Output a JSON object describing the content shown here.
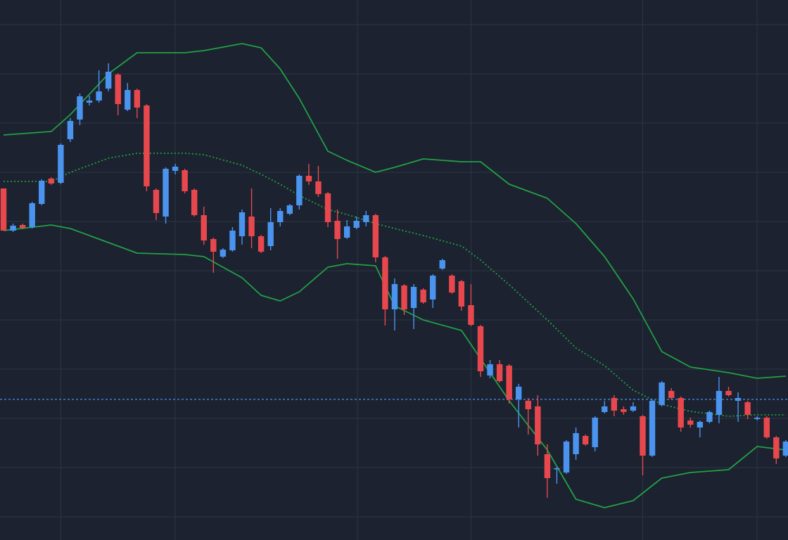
{
  "chart_data": {
    "type": "candlestick",
    "grid": true,
    "up_color": "#4a94ef",
    "down_color": "#e8484d",
    "xlim": [
      -0.37,
      82.23
    ],
    "xticks": [
      6,
      18,
      37.1,
      49,
      67,
      79
    ],
    "ylim": [
      0,
      768
    ],
    "yticks": [
      733,
      663,
      593,
      523,
      453,
      383,
      313,
      243,
      173,
      103,
      33
    ],
    "x": [
      0,
      1,
      2,
      3,
      4,
      5,
      6,
      7,
      8,
      9,
      10,
      11,
      12,
      13,
      14,
      15,
      16,
      17,
      18,
      19,
      20,
      21,
      22,
      23,
      24,
      25,
      26,
      27,
      28,
      29,
      30,
      31,
      32,
      33,
      34,
      35,
      36,
      37,
      38,
      39,
      40,
      41,
      42,
      43,
      44,
      45,
      46,
      47,
      48,
      49,
      50,
      51,
      52,
      53,
      54,
      55,
      56,
      57,
      58,
      59,
      60,
      61,
      62,
      63,
      64,
      65,
      66,
      67,
      68,
      69,
      70,
      71,
      72,
      73,
      74,
      75,
      76,
      77,
      78,
      79,
      80,
      81,
      82
    ],
    "open": [
      500,
      440,
      448,
      445,
      478,
      514,
      508,
      570,
      598,
      622,
      625,
      642,
      662,
      612,
      640,
      618,
      498,
      460,
      525,
      526,
      498,
      462,
      428,
      403,
      412,
      432,
      460,
      432,
      418,
      452,
      464,
      476,
      518,
      510,
      493,
      454,
      430,
      444,
      452,
      462,
      402,
      328,
      362,
      330,
      356,
      342,
      386,
      376,
      368,
      334,
      304,
      234,
      250,
      248,
      200,
      198,
      190,
      122,
      101,
      96,
      122,
      148,
      132,
      182,
      202,
      186,
      184,
      176,
      120,
      192,
      212,
      202,
      170,
      160,
      168,
      178,
      212,
      198,
      196,
      172,
      174,
      146,
      120
    ],
    "high": [
      500,
      450,
      450,
      481,
      513,
      516,
      564,
      600,
      635,
      632,
      668,
      678,
      664,
      650,
      642,
      620,
      500,
      530,
      535,
      528,
      500,
      474,
      430,
      415,
      445,
      470,
      500,
      434,
      472,
      472,
      478,
      520,
      535,
      532,
      495,
      470,
      455,
      460,
      468,
      464,
      404,
      372,
      364,
      364,
      358,
      378,
      400,
      378,
      370,
      364,
      306,
      256,
      256,
      250,
      222,
      202,
      206,
      136,
      104,
      142,
      160,
      150,
      176,
      198,
      206,
      190,
      196,
      178,
      200,
      226,
      216,
      204,
      174,
      170,
      184,
      232,
      218,
      210,
      198,
      176,
      176,
      148,
      142
    ],
    "low": [
      440,
      438,
      442,
      443,
      476,
      505,
      506,
      566,
      590,
      618,
      622,
      638,
      604,
      610,
      600,
      496,
      455,
      450,
      520,
      493,
      460,
      420,
      380,
      401,
      410,
      420,
      415,
      408,
      412,
      446,
      462,
      470,
      505,
      488,
      445,
      400,
      428,
      442,
      446,
      395,
      305,
      298,
      320,
      300,
      336,
      330,
      384,
      350,
      326,
      304,
      232,
      230,
      224,
      194,
      160,
      150,
      120,
      60,
      80,
      94,
      114,
      134,
      126,
      180,
      176,
      178,
      182,
      92,
      118,
      190,
      200,
      154,
      160,
      146,
      166,
      166,
      204,
      168,
      172,
      170,
      144,
      108,
      118
    ],
    "close": [
      440,
      447,
      444,
      479,
      511,
      507,
      562,
      596,
      631,
      625,
      638,
      666,
      620,
      640,
      615,
      503,
      465,
      528,
      531,
      496,
      462,
      426,
      410,
      413,
      440,
      466,
      432,
      410,
      452,
      468,
      476,
      518,
      510,
      492,
      452,
      428,
      446,
      454,
      462,
      402,
      328,
      364,
      328,
      360,
      338,
      376,
      398,
      352,
      332,
      306,
      240,
      250,
      226,
      200,
      218,
      186,
      136,
      88,
      102,
      140,
      152,
      136,
      174,
      190,
      184,
      182,
      190,
      120,
      198,
      224,
      202,
      160,
      164,
      168,
      182,
      212,
      206,
      202,
      178,
      174,
      146,
      116,
      140
    ],
    "bands": {
      "color": "#22a045",
      "x": [
        0,
        5,
        7,
        11,
        14,
        19,
        21,
        25,
        27,
        29,
        31,
        34,
        36,
        39,
        41,
        44,
        48,
        50,
        53,
        57,
        60,
        63,
        66,
        69,
        72,
        76,
        79,
        82
      ],
      "upper": [
        576,
        581,
        605,
        663,
        693,
        693,
        696,
        706,
        700,
        670,
        628,
        553,
        540,
        523,
        530,
        542,
        538,
        538,
        506,
        486,
        450,
        403,
        343,
        268,
        246,
        238,
        230,
        233
      ],
      "middle": [
        510,
        510,
        523,
        543,
        550,
        550,
        548,
        533,
        520,
        506,
        490,
        470,
        463,
        450,
        443,
        433,
        418,
        398,
        363,
        313,
        273,
        248,
        213,
        193,
        183,
        176,
        178,
        178
      ],
      "lower": [
        440,
        448,
        443,
        423,
        408,
        406,
        403,
        373,
        348,
        340,
        353,
        388,
        393,
        390,
        333,
        313,
        298,
        258,
        198,
        128,
        58,
        46,
        56,
        88,
        96,
        100,
        133,
        128
      ]
    },
    "price_line": {
      "value": 200,
      "color": "#4a94ef"
    }
  }
}
